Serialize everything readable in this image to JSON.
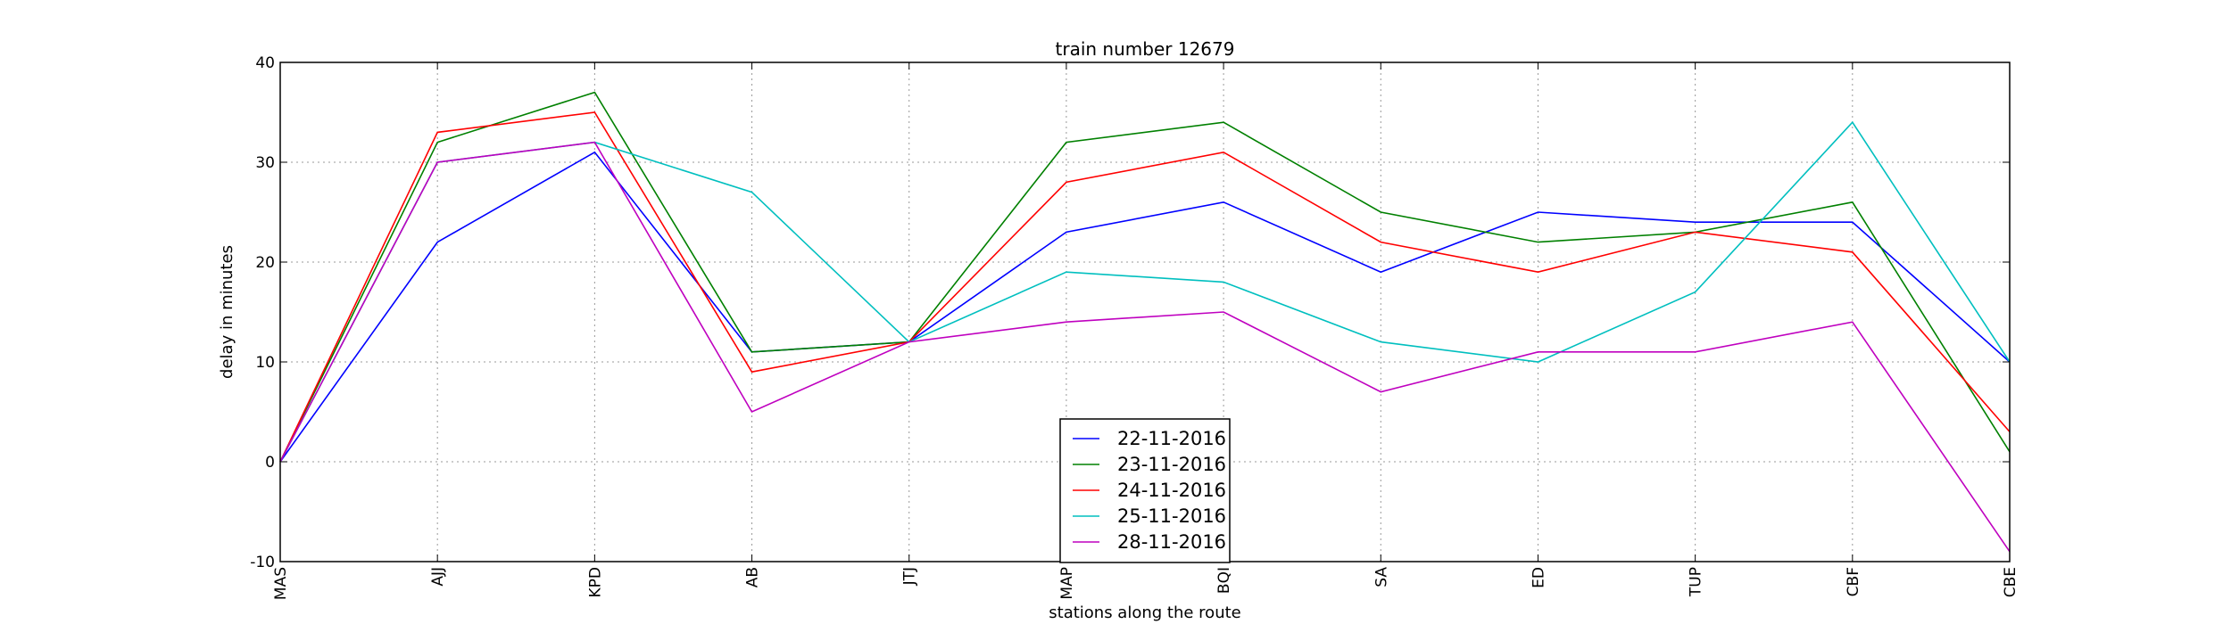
{
  "chart_data": {
    "type": "line",
    "title": "train number 12679",
    "xlabel": "stations along the route",
    "ylabel": "delay in minutes",
    "categories": [
      "MAS",
      "AJJ",
      "KPD",
      "AB",
      "JTJ",
      "MAP",
      "BQI",
      "SA",
      "ED",
      "TUP",
      "CBF",
      "CBE"
    ],
    "ylim": [
      -10,
      40
    ],
    "yticks": [
      -10,
      0,
      10,
      20,
      30,
      40
    ],
    "grid": true,
    "legend_position": "lower-center",
    "series": [
      {
        "name": "22-11-2016",
        "color": "#0000ff",
        "values": [
          0,
          22,
          31,
          11,
          12,
          23,
          26,
          19,
          25,
          24,
          24,
          10
        ]
      },
      {
        "name": "23-11-2016",
        "color": "#008000",
        "values": [
          0,
          32,
          37,
          11,
          12,
          32,
          34,
          25,
          22,
          23,
          26,
          1
        ]
      },
      {
        "name": "24-11-2016",
        "color": "#ff0000",
        "values": [
          0,
          33,
          35,
          9,
          12,
          28,
          31,
          22,
          19,
          23,
          21,
          3
        ]
      },
      {
        "name": "25-11-2016",
        "color": "#00bfbf",
        "values": [
          0,
          30,
          32,
          27,
          12,
          19,
          18,
          12,
          10,
          17,
          34,
          10
        ]
      },
      {
        "name": "28-11-2016",
        "color": "#bf00bf",
        "values": [
          0,
          30,
          32,
          5,
          12,
          14,
          15,
          7,
          11,
          11,
          14,
          -9
        ]
      }
    ]
  }
}
